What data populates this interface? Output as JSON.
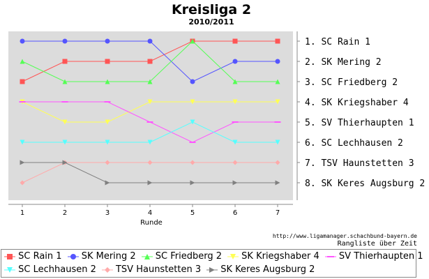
{
  "chart_data": {
    "type": "line",
    "title": "Kreisliga 2",
    "subtitle": "2010/2011",
    "xlabel": "Runde",
    "x": [
      1,
      2,
      3,
      4,
      5,
      6,
      7
    ],
    "y_inverted": true,
    "ylim": [
      1,
      8
    ],
    "right_labels": [
      "1. SC Rain 1",
      "2. SK Mering 2",
      "3. SC Friedberg 2",
      "4. SK Kriegshaber 4",
      "5. SV Thierhaupten 1",
      "6. SC Lechhausen 2",
      "7. TSV Haunstetten 3",
      "8. SK Keres Augsburg 2"
    ],
    "grid": false,
    "legend_position": "bottom",
    "series": [
      {
        "name": "SC Rain 1",
        "color": "#ff5555",
        "marker": "square",
        "values": [
          3,
          2,
          2,
          2,
          1,
          1,
          1
        ]
      },
      {
        "name": "SK Mering 2",
        "color": "#5555ff",
        "marker": "circle",
        "values": [
          1,
          1,
          1,
          1,
          3,
          2,
          2
        ]
      },
      {
        "name": "SC Friedberg 2",
        "color": "#55ff55",
        "marker": "triangle-up",
        "values": [
          2,
          3,
          3,
          3,
          1,
          3,
          3
        ]
      },
      {
        "name": "SK Kriegshaber 4",
        "color": "#ffff55",
        "marker": "triangle-down",
        "values": [
          4,
          5,
          5,
          4,
          4,
          4,
          4
        ]
      },
      {
        "name": "SV Thierhaupten 1",
        "color": "#ff55ff",
        "marker": "dash",
        "values": [
          4,
          4,
          4,
          5,
          6,
          5,
          5
        ]
      },
      {
        "name": "SC Lechhausen 2",
        "color": "#55ffff",
        "marker": "triangle-down",
        "values": [
          6,
          6,
          6,
          6,
          5,
          6,
          6
        ]
      },
      {
        "name": "TSV Haunstetten 3",
        "color": "#ffaaaa",
        "marker": "diamond",
        "values": [
          8,
          7,
          7,
          7,
          7,
          7,
          7
        ]
      },
      {
        "name": "SK Keres Augsburg 2",
        "color": "#808080",
        "marker": "triangle-right",
        "values": [
          7,
          7,
          8,
          8,
          8,
          8,
          8
        ]
      }
    ]
  },
  "footer": {
    "url": "http://www.ligamanager.schachbund-bayern.de",
    "caption": "Rangliste über Zeit"
  }
}
